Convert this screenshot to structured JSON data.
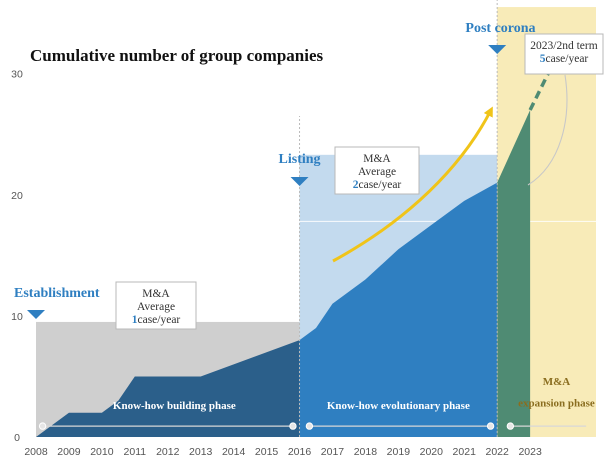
{
  "chart_data": {
    "type": "area",
    "title": "Cumulative number of group companies",
    "xlabel": "",
    "ylabel": "",
    "x": [
      2008,
      2008.5,
      2009,
      2010,
      2010.5,
      2011,
      2012,
      2013,
      2014,
      2015,
      2016,
      2016.5,
      2017,
      2018,
      2019,
      2020,
      2021,
      2022,
      2023
    ],
    "values": [
      0,
      1,
      2,
      2,
      3,
      5,
      5,
      5,
      6,
      7,
      8,
      9,
      11,
      13,
      15.5,
      17.5,
      19.5,
      21,
      27
    ],
    "projection": {
      "x": [
        2023,
        2024
      ],
      "values": [
        27,
        32.5
      ]
    },
    "xticks": [
      "2008",
      "2009",
      "2010",
      "2011",
      "2012",
      "2013",
      "2014",
      "2015",
      "2016",
      "2017",
      "2018",
      "2019",
      "2020",
      "2021",
      "2022",
      "2023"
    ],
    "yticks": [
      "0",
      "10",
      "20",
      "30"
    ],
    "ylim": [
      0,
      36
    ],
    "xlim": [
      2008,
      2025
    ],
    "grid": false,
    "milestones": [
      {
        "label": "Establishment",
        "year": 2008
      },
      {
        "label": "Listing",
        "year": 2016
      },
      {
        "label": "Post corona",
        "year": 2022
      }
    ],
    "phases": [
      {
        "label": "Know-how building phase",
        "from": 2008,
        "to": 2016,
        "band_top": 9.5,
        "color": "#cfcfcf"
      },
      {
        "label": "Know-how evolutionary phase",
        "from": 2016,
        "to": 2022,
        "band_top": 23.3,
        "color": "#c3daee"
      },
      {
        "label": "M&A",
        "label2": "expansion phase",
        "from": 2022,
        "to": 2025,
        "band_top": 35.5,
        "color": "#f8ebb8"
      }
    ],
    "annotations": [
      {
        "line1": "M&A",
        "line2": "Average",
        "strong": "1",
        "rest": "case/year"
      },
      {
        "line1": "M&A",
        "line2": "Average",
        "strong": "2",
        "rest": "case/year"
      },
      {
        "line1": "2023/2nd term",
        "strong": "5",
        "rest": "case/year"
      }
    ],
    "colors": {
      "area_early": "#2b5f8a",
      "area_mid": "#2f7fc1",
      "area_late": "#4f8b73",
      "milestone": "#2f7fc1",
      "arrow": "#f0c419"
    }
  }
}
